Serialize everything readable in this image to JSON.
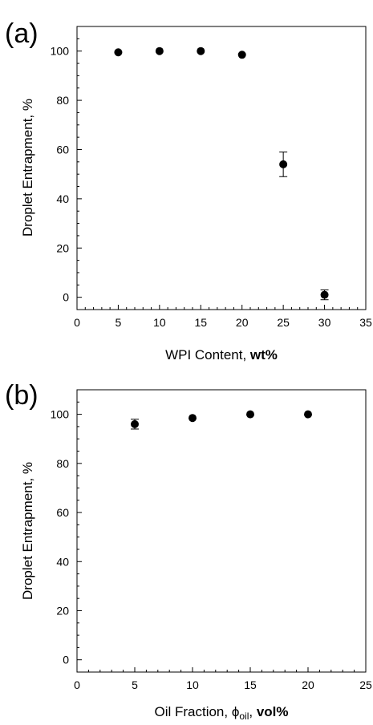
{
  "chart_data": [
    {
      "type": "scatter",
      "panel_label": "(a)",
      "xlabel_prefix": "WPI Content, ",
      "xlabel_bold": "wt%",
      "ylabel": "Droplet Entrapment, %",
      "xlim": [
        0,
        35
      ],
      "ylim": [
        -5,
        110
      ],
      "xticks": [
        "0",
        "5",
        "10",
        "15",
        "20",
        "25",
        "30",
        "35"
      ],
      "yticks": [
        "0",
        "20",
        "40",
        "60",
        "80",
        "100"
      ],
      "grid": false,
      "marker_color": "#000000",
      "points": [
        {
          "x": 5,
          "y": 99.5,
          "err": 0
        },
        {
          "x": 10,
          "y": 100,
          "err": 0
        },
        {
          "x": 15,
          "y": 100,
          "err": 0
        },
        {
          "x": 20,
          "y": 98.5,
          "err": 0
        },
        {
          "x": 25,
          "y": 54,
          "err": 5
        },
        {
          "x": 30,
          "y": 1,
          "err": 2
        }
      ]
    },
    {
      "type": "scatter",
      "panel_label": "(b)",
      "xlabel_prefix": "Oil Fraction, ",
      "xlabel_symbol": "ϕ",
      "xlabel_sub": "oil",
      "xlabel_sep": ", ",
      "xlabel_bold": "vol%",
      "ylabel": "Droplet Entrapment, %",
      "xlim": [
        0,
        25
      ],
      "ylim": [
        -5,
        110
      ],
      "xticks": [
        "0",
        "5",
        "10",
        "15",
        "20",
        "25"
      ],
      "yticks": [
        "0",
        "20",
        "40",
        "60",
        "80",
        "100"
      ],
      "grid": false,
      "marker_color": "#000000",
      "points": [
        {
          "x": 5,
          "y": 96,
          "err": 2
        },
        {
          "x": 10,
          "y": 98.5,
          "err": 0
        },
        {
          "x": 15,
          "y": 100,
          "err": 0
        },
        {
          "x": 20,
          "y": 100,
          "err": 0
        }
      ]
    }
  ]
}
